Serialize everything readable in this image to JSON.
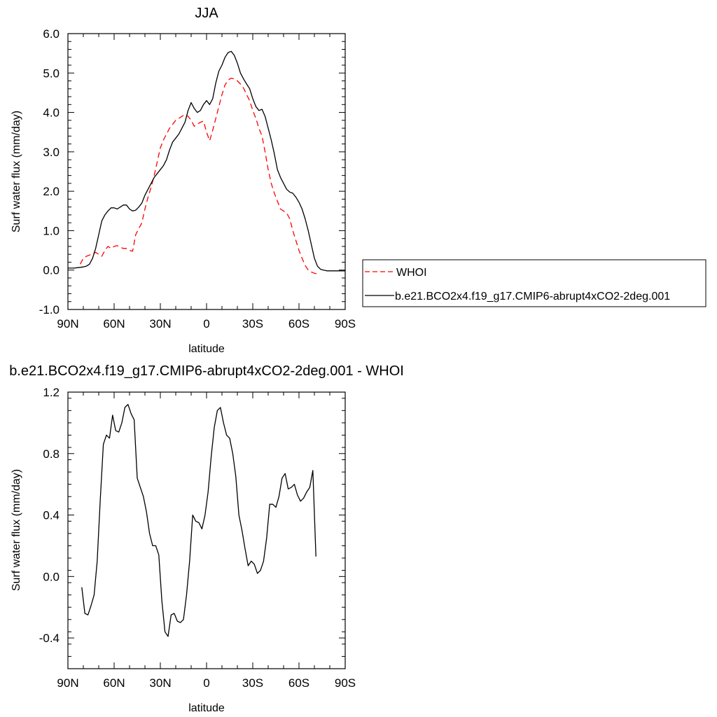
{
  "chart_data": [
    {
      "type": "line",
      "title": "JJA",
      "xlabel": "latitude",
      "ylabel": "Surf water flux (mm/day)",
      "xlim": [
        90,
        -90
      ],
      "ylim": [
        -1.0,
        6.0
      ],
      "x_ticks": [
        {
          "value": 90,
          "label": "90N"
        },
        {
          "value": 60,
          "label": "60N"
        },
        {
          "value": 30,
          "label": "30N"
        },
        {
          "value": 0,
          "label": "0"
        },
        {
          "value": -30,
          "label": "30S"
        },
        {
          "value": -60,
          "label": "60S"
        },
        {
          "value": -90,
          "label": "90S"
        }
      ],
      "y_ticks": [
        {
          "value": -1.0,
          "label": "-1.0"
        },
        {
          "value": 0.0,
          "label": "0.0"
        },
        {
          "value": 1.0,
          "label": "1.0"
        },
        {
          "value": 2.0,
          "label": "2.0"
        },
        {
          "value": 3.0,
          "label": "3.0"
        },
        {
          "value": 4.0,
          "label": "4.0"
        },
        {
          "value": 5.0,
          "label": "5.0"
        },
        {
          "value": 6.0,
          "label": "6.0"
        }
      ],
      "grid": false,
      "legend_position": "right",
      "series": [
        {
          "name": "WHOI",
          "color": "#ff0000",
          "dash": "dashed",
          "x": [
            82,
            80,
            78,
            76,
            74,
            72,
            70,
            68,
            66,
            64,
            62,
            60,
            58,
            56,
            54,
            52,
            50,
            48,
            46,
            44,
            42,
            40,
            38,
            36,
            34,
            32,
            30,
            28,
            26,
            24,
            22,
            20,
            18,
            16,
            14,
            12,
            10,
            8,
            6,
            4,
            2,
            0,
            -2,
            -4,
            -6,
            -8,
            -10,
            -12,
            -14,
            -16,
            -18,
            -20,
            -22,
            -24,
            -26,
            -28,
            -30,
            -32,
            -34,
            -36,
            -38,
            -40,
            -42,
            -44,
            -46,
            -48,
            -50,
            -52,
            -54,
            -56,
            -58,
            -60,
            -62,
            -64,
            -66,
            -68,
            -70,
            -72
          ],
          "y": [
            0.15,
            0.3,
            0.35,
            0.38,
            0.42,
            0.45,
            0.4,
            0.35,
            0.5,
            0.6,
            0.55,
            0.6,
            0.62,
            0.58,
            0.55,
            0.55,
            0.5,
            0.48,
            0.9,
            1.05,
            1.2,
            1.55,
            1.85,
            2.1,
            2.4,
            2.75,
            3.1,
            3.3,
            3.45,
            3.6,
            3.7,
            3.8,
            3.85,
            3.9,
            3.95,
            3.9,
            3.8,
            3.65,
            3.7,
            3.75,
            3.78,
            3.5,
            3.28,
            3.55,
            3.85,
            4.15,
            4.45,
            4.7,
            4.82,
            4.87,
            4.85,
            4.8,
            4.72,
            4.62,
            4.45,
            4.3,
            4.05,
            3.85,
            3.6,
            3.4,
            3.0,
            2.55,
            2.2,
            1.95,
            1.75,
            1.55,
            1.5,
            1.45,
            1.3,
            1.0,
            0.75,
            0.5,
            0.3,
            0.12,
            0.0,
            -0.05,
            -0.08,
            -0.1
          ]
        },
        {
          "name": "b.e21.BCO2x4.f19_g17.CMIP6-abrupt4xCO2-2deg.001",
          "color": "#000000",
          "dash": "solid",
          "x": [
            90,
            88,
            86,
            84,
            82,
            80,
            78,
            76,
            74,
            72,
            70,
            68,
            66,
            64,
            62,
            60,
            58,
            56,
            54,
            52,
            50,
            48,
            46,
            44,
            42,
            40,
            38,
            36,
            34,
            32,
            30,
            28,
            26,
            24,
            22,
            20,
            18,
            16,
            14,
            12,
            10,
            8,
            6,
            4,
            2,
            0,
            -2,
            -4,
            -6,
            -8,
            -10,
            -12,
            -14,
            -16,
            -18,
            -20,
            -22,
            -24,
            -26,
            -28,
            -30,
            -32,
            -34,
            -36,
            -38,
            -40,
            -42,
            -44,
            -46,
            -48,
            -50,
            -52,
            -54,
            -56,
            -58,
            -60,
            -62,
            -64,
            -66,
            -68,
            -70,
            -72,
            -74,
            -76,
            -78,
            -80,
            -82,
            -84,
            -86,
            -88,
            -90
          ],
          "y": [
            0.05,
            0.05,
            0.05,
            0.06,
            0.07,
            0.08,
            0.1,
            0.15,
            0.3,
            0.55,
            0.9,
            1.25,
            1.4,
            1.5,
            1.58,
            1.58,
            1.55,
            1.6,
            1.65,
            1.65,
            1.55,
            1.5,
            1.52,
            1.6,
            1.7,
            1.9,
            2.05,
            2.2,
            2.35,
            2.45,
            2.55,
            2.65,
            2.8,
            3.05,
            3.25,
            3.35,
            3.45,
            3.6,
            3.75,
            4.05,
            4.25,
            4.1,
            4.0,
            4.05,
            4.2,
            4.3,
            4.2,
            4.35,
            4.75,
            5.05,
            5.2,
            5.4,
            5.52,
            5.55,
            5.45,
            5.25,
            5.0,
            4.85,
            4.72,
            4.6,
            4.35,
            4.15,
            4.05,
            4.08,
            3.9,
            3.6,
            3.3,
            2.95,
            2.55,
            2.35,
            2.2,
            2.05,
            1.98,
            1.95,
            1.85,
            1.72,
            1.55,
            1.3,
            1.0,
            0.65,
            0.3,
            0.1,
            0.02,
            0.0,
            -0.02,
            -0.02,
            -0.02,
            -0.02,
            -0.02,
            -0.02,
            -0.02
          ]
        }
      ]
    },
    {
      "type": "line",
      "title": "b.e21.BCO2x4.f19_g17.CMIP6-abrupt4xCO2-2deg.001 - WHOI",
      "xlabel": "latitude",
      "ylabel": "Surf water flux (mm/day)",
      "xlim": [
        90,
        -90
      ],
      "ylim": [
        -0.6,
        1.2
      ],
      "x_ticks": [
        {
          "value": 90,
          "label": "90N"
        },
        {
          "value": 60,
          "label": "60N"
        },
        {
          "value": 30,
          "label": "30N"
        },
        {
          "value": 0,
          "label": "0"
        },
        {
          "value": -30,
          "label": "30S"
        },
        {
          "value": -60,
          "label": "60S"
        },
        {
          "value": -90,
          "label": "90S"
        }
      ],
      "y_ticks": [
        {
          "value": -0.4,
          "label": "-0.4"
        },
        {
          "value": 0.0,
          "label": "0.0"
        },
        {
          "value": 0.4,
          "label": "0.4"
        },
        {
          "value": 0.8,
          "label": "0.8"
        },
        {
          "value": 1.2,
          "label": "1.2"
        }
      ],
      "grid": false,
      "series": [
        {
          "color": "#000000",
          "dash": "solid",
          "x": [
            81,
            79,
            77,
            75,
            73,
            71,
            69,
            67,
            65,
            63,
            61,
            59,
            57,
            55,
            53,
            51,
            49,
            47,
            45,
            43,
            41,
            39,
            37,
            35,
            33,
            31,
            29,
            27,
            25,
            23,
            21,
            19,
            17,
            15,
            13,
            11,
            9,
            7,
            5,
            3,
            1,
            -1,
            -3,
            -5,
            -7,
            -9,
            -11,
            -13,
            -15,
            -17,
            -19,
            -21,
            -23,
            -25,
            -27,
            -29,
            -31,
            -33,
            -35,
            -37,
            -39,
            -41,
            -43,
            -45,
            -47,
            -49,
            -51,
            -53,
            -55,
            -57,
            -59,
            -61,
            -63,
            -65,
            -67,
            -69,
            -71
          ],
          "y": [
            -0.07,
            -0.24,
            -0.25,
            -0.19,
            -0.12,
            0.1,
            0.5,
            0.86,
            0.92,
            0.9,
            1.05,
            0.95,
            0.94,
            1.0,
            1.1,
            1.12,
            1.06,
            1.02,
            0.64,
            0.58,
            0.52,
            0.42,
            0.28,
            0.2,
            0.2,
            0.14,
            -0.16,
            -0.36,
            -0.39,
            -0.25,
            -0.24,
            -0.29,
            -0.3,
            -0.28,
            -0.12,
            0.1,
            0.4,
            0.36,
            0.35,
            0.31,
            0.4,
            0.55,
            0.78,
            0.97,
            1.08,
            1.1,
            1.0,
            0.92,
            0.9,
            0.8,
            0.65,
            0.4,
            0.3,
            0.18,
            0.07,
            0.1,
            0.08,
            0.02,
            0.04,
            0.1,
            0.25,
            0.47,
            0.47,
            0.45,
            0.52,
            0.64,
            0.67,
            0.57,
            0.58,
            0.6,
            0.53,
            0.49,
            0.51,
            0.55,
            0.58,
            0.69,
            0.13
          ]
        }
      ]
    }
  ]
}
